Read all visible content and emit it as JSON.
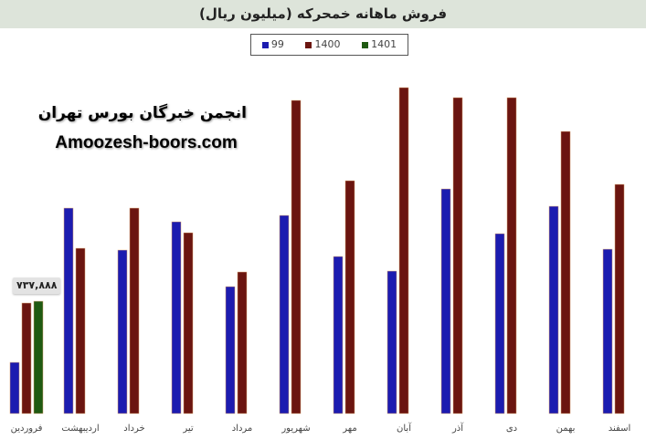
{
  "chart_data": {
    "type": "bar",
    "title": "فروش ماهانه خمحرکه (میلیون ریال)",
    "categories": [
      "فروردین",
      "اردیبهشت",
      "خرداد",
      "تیر",
      "مرداد",
      "شهریور",
      "مهر",
      "آبان",
      "آذر",
      "دی",
      "بهمن",
      "اسفند"
    ],
    "series": [
      {
        "name": "99",
        "color": "#1c1cb0",
        "values": [
          336000,
          1350000,
          1074000,
          1260000,
          834000,
          1302000,
          1032000,
          936000,
          1476000,
          1182000,
          1362000,
          1080000
        ]
      },
      {
        "name": "1400",
        "color": "#6b1510",
        "values": [
          726000,
          1086000,
          1350000,
          1188000,
          930000,
          2058000,
          1530000,
          2142000,
          2076000,
          2076000,
          1854000,
          1506000
        ]
      },
      {
        "name": "1401",
        "color": "#1f5a12",
        "values": [
          737888,
          null,
          null,
          null,
          null,
          null,
          null,
          null,
          null,
          null,
          null,
          null
        ]
      }
    ],
    "data_labels": [
      {
        "series": "1401",
        "category": "فروردین",
        "text": "۷۳۷,۸۸۸"
      }
    ],
    "legend_position": "top",
    "grid": false,
    "ylim": [
      0,
      2238000
    ]
  },
  "watermark": {
    "line1": "انجمن خبرگان بورس تهران",
    "line2": "Amoozesh-boors.com"
  }
}
